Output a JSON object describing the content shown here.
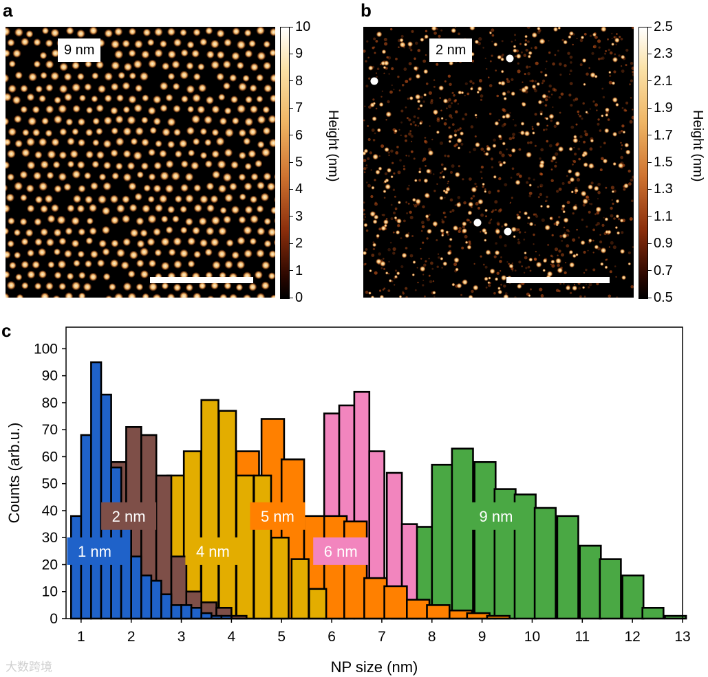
{
  "panels": {
    "a": {
      "letter": "a",
      "label": "9 nm",
      "colorbar": {
        "title": "Height (nm)",
        "ticks": [
          "10",
          "9",
          "8",
          "7",
          "6",
          "5",
          "4",
          "3",
          "2",
          "1",
          "0"
        ]
      }
    },
    "b": {
      "letter": "b",
      "label": "2 nm",
      "colorbar": {
        "title": "Height (nm)",
        "ticks": [
          "2.5",
          "2.3",
          "2.1",
          "1.9",
          "1.7",
          "1.5",
          "1.3",
          "1.1",
          "0.9",
          "0.7",
          "0.5"
        ]
      }
    },
    "c": {
      "letter": "c"
    }
  },
  "colors": {
    "afm_dark": "#000000",
    "afm_bright": "#fff4d6",
    "afm_mid": "#c7551a"
  },
  "watermark": "大数跨境",
  "chart_data": {
    "type": "bar",
    "xlabel": "NP size (nm)",
    "ylabel": "Counts (arb.u.)",
    "xlim": [
      0.7,
      13
    ],
    "ylim": [
      0,
      108
    ],
    "xticks": [
      1,
      2,
      3,
      4,
      5,
      6,
      7,
      8,
      9,
      10,
      11,
      12,
      13
    ],
    "yticks": [
      0,
      10,
      20,
      30,
      40,
      50,
      60,
      70,
      80,
      90,
      100
    ],
    "series": [
      {
        "name": "9 nm",
        "color": "#4aa844",
        "bin_width": 0.42,
        "bins": [
          [
            7.2,
            27
          ],
          [
            7.6,
            34
          ],
          [
            8.0,
            57
          ],
          [
            8.4,
            63
          ],
          [
            8.85,
            58
          ],
          [
            9.25,
            48
          ],
          [
            9.65,
            46
          ],
          [
            10.05,
            41
          ],
          [
            10.5,
            38
          ],
          [
            10.95,
            27
          ],
          [
            11.35,
            22
          ],
          [
            11.8,
            16
          ],
          [
            12.2,
            4
          ],
          [
            12.65,
            1
          ]
        ]
      },
      {
        "name": "6 nm",
        "color": "#f285be",
        "bin_width": 0.3,
        "bins": [
          [
            5.85,
            76
          ],
          [
            6.15,
            79
          ],
          [
            6.45,
            84
          ],
          [
            6.75,
            62
          ],
          [
            7.1,
            54
          ],
          [
            7.4,
            35
          ],
          [
            7.7,
            1
          ]
        ]
      },
      {
        "name": "5 nm",
        "color": "#ff8000",
        "bin_width": 0.45,
        "bins": [
          [
            4.1,
            62
          ],
          [
            4.6,
            74
          ],
          [
            5.0,
            59
          ],
          [
            5.45,
            38
          ],
          [
            5.85,
            38
          ],
          [
            6.25,
            36
          ],
          [
            6.65,
            15
          ],
          [
            7.05,
            12
          ],
          [
            7.5,
            7
          ],
          [
            7.9,
            5
          ],
          [
            8.35,
            3
          ],
          [
            8.7,
            2
          ],
          [
            9.1,
            1
          ]
        ]
      },
      {
        "name": "4 nm",
        "color": "#e3ad00",
        "bin_width": 0.34,
        "bins": [
          [
            2.3,
            21
          ],
          [
            2.72,
            53
          ],
          [
            3.05,
            62
          ],
          [
            3.4,
            81
          ],
          [
            3.75,
            77
          ],
          [
            4.1,
            53
          ],
          [
            4.45,
            53
          ],
          [
            4.8,
            30
          ],
          [
            5.2,
            22
          ],
          [
            5.55,
            11
          ]
        ]
      },
      {
        "name": "2 nm",
        "color": "#7e4f48",
        "bin_width": 0.3,
        "bins": [
          [
            1.6,
            58
          ],
          [
            1.9,
            71
          ],
          [
            2.2,
            68
          ],
          [
            2.5,
            53
          ],
          [
            2.8,
            23
          ],
          [
            3.1,
            10
          ],
          [
            3.4,
            6
          ],
          [
            3.7,
            4
          ],
          [
            4.0,
            1
          ]
        ]
      },
      {
        "name": "1 nm",
        "color": "#1f62c9",
        "bin_width": 0.2,
        "bins": [
          [
            0.8,
            38
          ],
          [
            1.0,
            68
          ],
          [
            1.2,
            95
          ],
          [
            1.4,
            83
          ],
          [
            1.6,
            56
          ],
          [
            1.8,
            37
          ],
          [
            2.0,
            23
          ],
          [
            2.2,
            16
          ],
          [
            2.4,
            14
          ],
          [
            2.6,
            9
          ],
          [
            2.8,
            5
          ],
          [
            3.0,
            5
          ],
          [
            3.2,
            4
          ],
          [
            3.4,
            2
          ],
          [
            3.6,
            1
          ],
          [
            3.8,
            1
          ]
        ]
      }
    ],
    "annotations": [
      {
        "text": "1 nm",
        "x": 1.27,
        "y": 25,
        "bg": "#1f62c9",
        "fg": "#ffffff"
      },
      {
        "text": "2 nm",
        "x": 1.95,
        "y": 38,
        "bg": "#7e4f48",
        "fg": "#ffffff"
      },
      {
        "text": "4 nm",
        "x": 3.63,
        "y": 25,
        "bg": "#e3ad00",
        "fg": "#ffffff"
      },
      {
        "text": "5 nm",
        "x": 4.92,
        "y": 38,
        "bg": "#ff8000",
        "fg": "#ffffff"
      },
      {
        "text": "6 nm",
        "x": 6.18,
        "y": 25,
        "bg": "#f285be",
        "fg": "#ffffff"
      },
      {
        "text": "9 nm",
        "x": 9.28,
        "y": 38,
        "bg": "#4aa844",
        "fg": "#ffffff"
      }
    ]
  }
}
